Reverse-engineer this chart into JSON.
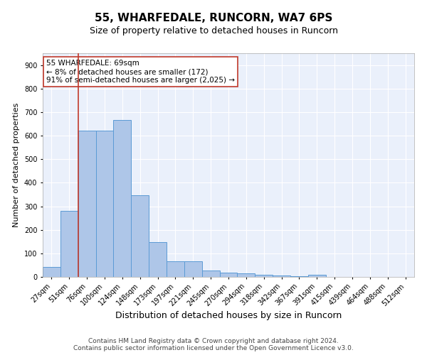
{
  "title1": "55, WHARFEDALE, RUNCORN, WA7 6PS",
  "title2": "Size of property relative to detached houses in Runcorn",
  "xlabel": "Distribution of detached houses by size in Runcorn",
  "ylabel": "Number of detached properties",
  "categories": [
    "27sqm",
    "51sqm",
    "76sqm",
    "100sqm",
    "124sqm",
    "148sqm",
    "173sqm",
    "197sqm",
    "221sqm",
    "245sqm",
    "270sqm",
    "294sqm",
    "318sqm",
    "342sqm",
    "367sqm",
    "391sqm",
    "415sqm",
    "439sqm",
    "464sqm",
    "488sqm",
    "512sqm"
  ],
  "values": [
    42,
    280,
    622,
    622,
    668,
    347,
    147,
    65,
    65,
    28,
    18,
    14,
    10,
    5,
    4,
    9,
    0,
    0,
    0,
    0,
    1
  ],
  "bar_color": "#aec6e8",
  "bar_edge_color": "#5b9bd5",
  "vline_color": "#c0392b",
  "vline_x": 1.5,
  "annotation_text": "55 WHARFEDALE: 69sqm\n← 8% of detached houses are smaller (172)\n91% of semi-detached houses are larger (2,025) →",
  "annotation_box_facecolor": "#ffffff",
  "annotation_box_edgecolor": "#c0392b",
  "ylim": [
    0,
    950
  ],
  "yticks": [
    0,
    100,
    200,
    300,
    400,
    500,
    600,
    700,
    800,
    900
  ],
  "background_color": "#eaf0fb",
  "grid_color": "#ffffff",
  "footer_text": "Contains HM Land Registry data © Crown copyright and database right 2024.\nContains public sector information licensed under the Open Government Licence v3.0.",
  "title1_fontsize": 11,
  "title2_fontsize": 9,
  "xlabel_fontsize": 9,
  "ylabel_fontsize": 8,
  "tick_fontsize": 7,
  "annotation_fontsize": 7.5,
  "footer_fontsize": 6.5
}
